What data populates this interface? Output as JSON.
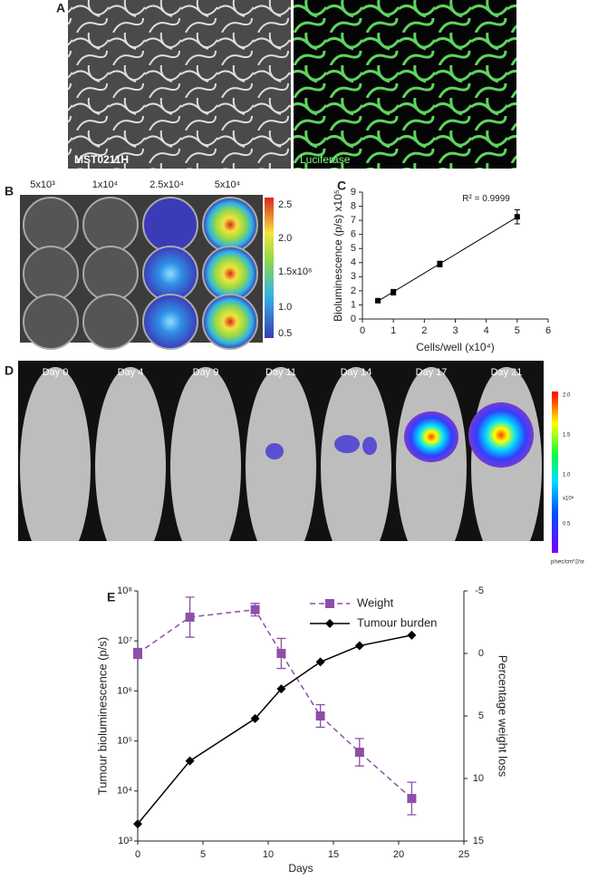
{
  "panel_labels": [
    "A",
    "B",
    "C",
    "D",
    "E"
  ],
  "panel_a": {
    "left_label": "MST0211H",
    "right_label": "Luciferase"
  },
  "panel_b": {
    "column_labels": [
      "5x10³",
      "1x10⁴",
      "2.5x10⁴",
      "5x10⁴"
    ],
    "colorbar_labels": [
      "2.5",
      "2.0",
      "1.5x10⁶",
      "1.0",
      "0.5"
    ]
  },
  "panel_d": {
    "day_labels": [
      "Day 0",
      "Day 4",
      "Day 9",
      "Day 11",
      "Day 14",
      "Day 17",
      "Day 21"
    ],
    "colorbar_labels": [
      "2.0",
      "1.5",
      "1.0",
      "x10⁸",
      "0.5"
    ],
    "colorbar_unit": "p/sec/cm^2/sr"
  },
  "chart_data": [
    {
      "type": "scatter",
      "x_label": "Cells/well (x10⁴)",
      "y_label": "Bioluminescence (p/s) x10⁵",
      "annotation": "R² = 0.9999",
      "color": "#000000",
      "trendline": true,
      "x": [
        0.5,
        1,
        2.5,
        5
      ],
      "values": [
        1.3,
        1.9,
        3.9,
        7.25
      ],
      "errors": [
        0.1,
        0.2,
        0.2,
        0.5
      ],
      "xlim": [
        0,
        6
      ],
      "xticks": [
        0,
        1,
        2,
        3,
        4,
        5,
        6
      ],
      "ylim": [
        0,
        9
      ],
      "yticks": [
        0,
        1,
        2,
        3,
        4,
        5,
        6,
        7,
        8,
        9
      ]
    },
    {
      "type": "line",
      "x_label": "Days",
      "y_label": "Tumour bioluminescence (p/s)",
      "y2_label": "Percentage weight loss",
      "x": [
        0,
        4,
        9,
        11,
        14,
        17,
        21
      ],
      "series": [
        {
          "name": "Weight",
          "color": "#8e4fa8",
          "axis": "y2",
          "dashed": true,
          "marker": "square",
          "values": [
            0,
            -2.9,
            -3.5,
            0,
            5,
            7.9,
            11.6
          ],
          "errors": [
            0.4,
            1.6,
            0.5,
            1.2,
            0.9,
            1.1,
            1.3
          ]
        },
        {
          "name": "Tumour burden",
          "color": "#000000",
          "marker": "diamond",
          "values": [
            2200,
            40000,
            280000,
            1100000,
            3800000,
            8000000,
            13000000
          ]
        }
      ],
      "xlim": [
        0,
        25
      ],
      "xticks": [
        0,
        5,
        10,
        15,
        20,
        25
      ],
      "log_scale": true,
      "ylim": [
        1000,
        100000000
      ],
      "yticks": [
        {
          "value": 1000,
          "label": "10³"
        },
        {
          "value": 10000,
          "label": "10⁴"
        },
        {
          "value": 100000,
          "label": "10⁵"
        },
        {
          "value": 1000000,
          "label": "10⁶"
        },
        {
          "value": 10000000,
          "label": "10⁷"
        },
        {
          "value": 100000000,
          "label": "10⁸"
        }
      ],
      "y2lim": [
        -5,
        15
      ],
      "y2ticks": [
        -5,
        0,
        5,
        10,
        15
      ],
      "y2_inverted": true,
      "legend": "top-right"
    }
  ]
}
